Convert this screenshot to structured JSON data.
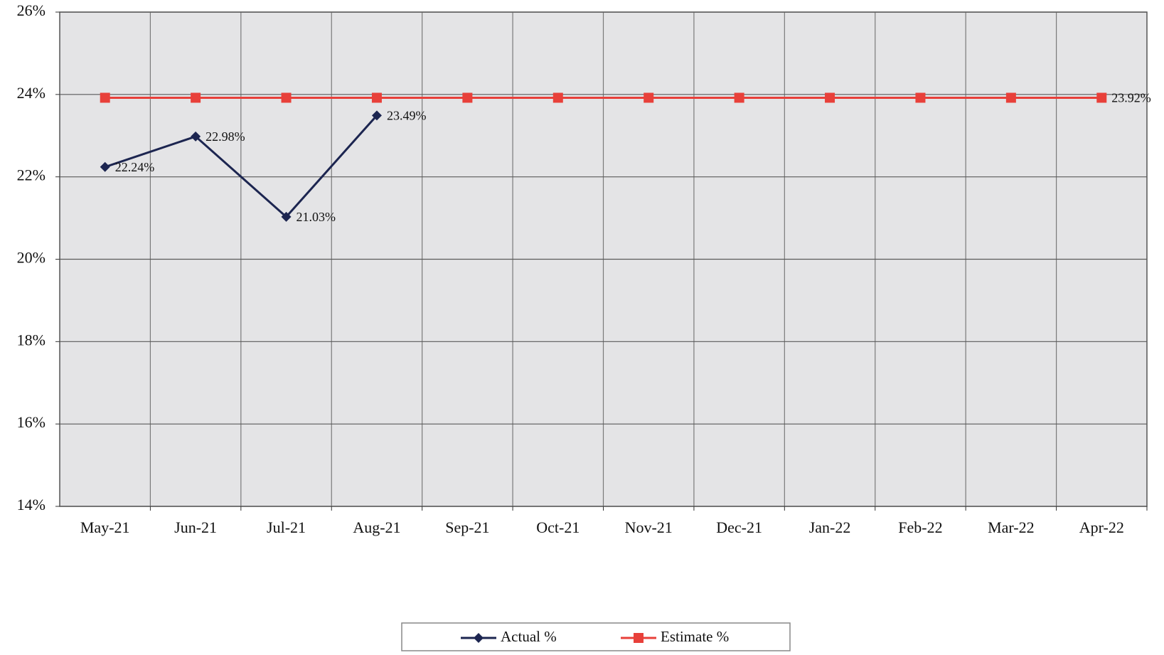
{
  "chart_data": {
    "type": "line",
    "categories": [
      "May-21",
      "Jun-21",
      "Jul-21",
      "Aug-21",
      "Sep-21",
      "Oct-21",
      "Nov-21",
      "Dec-21",
      "Jan-22",
      "Feb-22",
      "Mar-22",
      "Apr-22"
    ],
    "series": [
      {
        "name": "Actual %",
        "color": "#1c2550",
        "marker": "diamond",
        "values": [
          22.24,
          22.98,
          21.03,
          23.49,
          null,
          null,
          null,
          null,
          null,
          null,
          null,
          null
        ],
        "value_labels": [
          "22.24%",
          "22.98%",
          "21.03%",
          "23.49%",
          null,
          null,
          null,
          null,
          null,
          null,
          null,
          null
        ]
      },
      {
        "name": "Estimate %",
        "color": "#e8403a",
        "marker": "square",
        "values": [
          23.92,
          23.92,
          23.92,
          23.92,
          23.92,
          23.92,
          23.92,
          23.92,
          23.92,
          23.92,
          23.92,
          23.92
        ],
        "value_labels": [
          null,
          null,
          null,
          null,
          null,
          null,
          null,
          null,
          null,
          null,
          null,
          "23.92%"
        ]
      }
    ],
    "ylim": [
      14,
      26
    ],
    "yticks": [
      {
        "value": 14,
        "label": "14%"
      },
      {
        "value": 16,
        "label": "16%"
      },
      {
        "value": 18,
        "label": "18%"
      },
      {
        "value": 20,
        "label": "20%"
      },
      {
        "value": 22,
        "label": "22%"
      },
      {
        "value": 24,
        "label": "24%"
      },
      {
        "value": 26,
        "label": "26%"
      }
    ],
    "grid": true,
    "legend": "bottom"
  }
}
